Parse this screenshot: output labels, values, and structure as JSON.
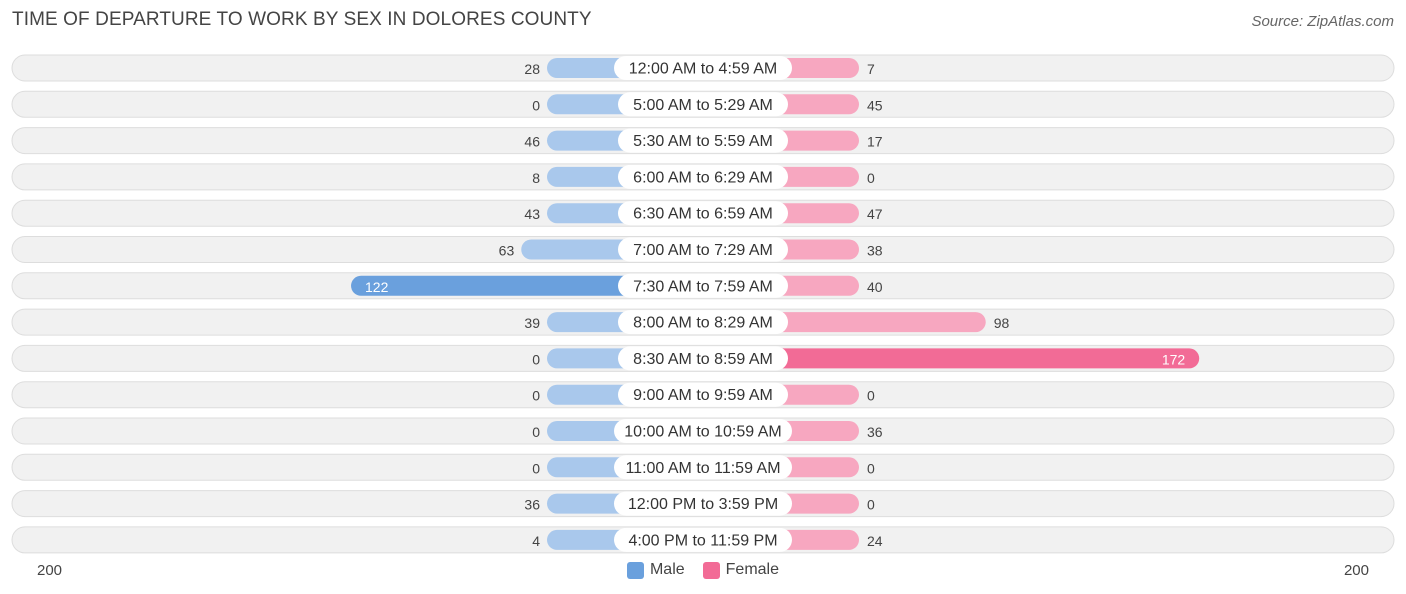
{
  "title": "TIME OF DEPARTURE TO WORK BY SEX IN DOLORES COUNTY",
  "source": "Source: ZipAtlas.com",
  "legend": {
    "male": "Male",
    "female": "Female"
  },
  "axis": {
    "left_max_label": "200",
    "right_max_label": "200"
  },
  "colors": {
    "male": "#6aa0dd",
    "male_light": "#a9c8ec",
    "female": "#f26b96",
    "female_light": "#f7a7c0",
    "row_bg": "#f1f1f1",
    "row_border": "#dddddd"
  },
  "chart_data": {
    "type": "bar",
    "orientation": "horizontal-diverging",
    "title": "TIME OF DEPARTURE TO WORK BY SEX IN DOLORES COUNTY",
    "xlim": [
      -200,
      200
    ],
    "categories": [
      "12:00 AM to 4:59 AM",
      "5:00 AM to 5:29 AM",
      "5:30 AM to 5:59 AM",
      "6:00 AM to 6:29 AM",
      "6:30 AM to 6:59 AM",
      "7:00 AM to 7:29 AM",
      "7:30 AM to 7:59 AM",
      "8:00 AM to 8:29 AM",
      "8:30 AM to 8:59 AM",
      "9:00 AM to 9:59 AM",
      "10:00 AM to 10:59 AM",
      "11:00 AM to 11:59 AM",
      "12:00 PM to 3:59 PM",
      "4:00 PM to 11:59 PM"
    ],
    "series": [
      {
        "name": "Male",
        "values": [
          28,
          0,
          46,
          8,
          43,
          63,
          122,
          39,
          0,
          0,
          0,
          0,
          36,
          4
        ]
      },
      {
        "name": "Female",
        "values": [
          7,
          45,
          17,
          0,
          47,
          38,
          40,
          98,
          172,
          0,
          36,
          0,
          0,
          24
        ]
      }
    ]
  }
}
